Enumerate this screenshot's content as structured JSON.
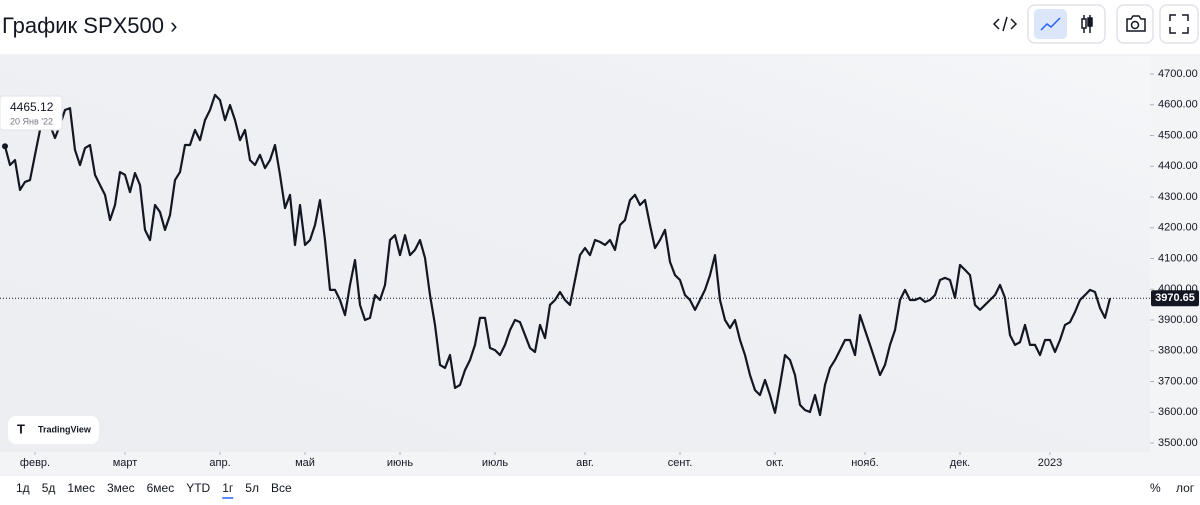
{
  "header": {
    "title": "График SPX500 ›"
  },
  "chart_data": {
    "type": "line",
    "series": [
      {
        "name": "SPX500",
        "color": "#131722",
        "values": [
          4465.12,
          4404,
          4420,
          4323,
          4349,
          4355,
          4437,
          4518,
          4583,
          4534,
          4492,
          4534,
          4583,
          4589,
          4453,
          4404,
          4459,
          4469,
          4372,
          4339,
          4307,
          4225,
          4274,
          4381,
          4372,
          4316,
          4378,
          4339,
          4193,
          4160,
          4274,
          4251,
          4193,
          4241,
          4355,
          4381,
          4469,
          4469,
          4518,
          4485,
          4550,
          4583,
          4632,
          4615,
          4550,
          4599,
          4550,
          4485,
          4518,
          4420,
          4404,
          4437,
          4394,
          4420,
          4469,
          4372,
          4264,
          4307,
          4144,
          4274,
          4144,
          4160,
          4209,
          4290,
          4160,
          3998,
          3998,
          3965,
          3916,
          4014,
          4095,
          3949,
          3900,
          3907,
          3981,
          3965,
          4014,
          4160,
          4176,
          4111,
          4176,
          4111,
          4128,
          4160,
          4102,
          3981,
          3884,
          3754,
          3744,
          3786,
          3679,
          3689,
          3737,
          3770,
          3819,
          3907,
          3907,
          3809,
          3802,
          3786,
          3819,
          3867,
          3900,
          3893,
          3851,
          3809,
          3796,
          3884,
          3841,
          3949,
          3965,
          3991,
          3965,
          3949,
          4030,
          4111,
          4134,
          4111,
          4160,
          4154,
          4144,
          4160,
          4128,
          4209,
          4225,
          4290,
          4307,
          4274,
          4290,
          4209,
          4134,
          4160,
          4193,
          4089,
          4046,
          4030,
          3981,
          3965,
          3933,
          3965,
          3998,
          4046,
          4111,
          3965,
          3900,
          3874,
          3900,
          3835,
          3786,
          3721,
          3672,
          3656,
          3705,
          3656,
          3598,
          3689,
          3786,
          3770,
          3721,
          3624,
          3607,
          3601,
          3656,
          3591,
          3689,
          3744,
          3770,
          3802,
          3835,
          3835,
          3786,
          3916,
          3867,
          3819,
          3770,
          3721,
          3754,
          3819,
          3867,
          3965,
          3998,
          3965,
          3965,
          3972,
          3959,
          3965,
          3981,
          4030,
          4037,
          4030,
          3972,
          4079,
          4063,
          4046,
          3949,
          3933,
          3949,
          3965,
          3981,
          4014,
          3972,
          3851,
          3819,
          3828,
          3884,
          3819,
          3819,
          3786,
          3835,
          3835,
          3796,
          3835,
          3884,
          3893,
          3926,
          3965,
          3981,
          3998,
          3991,
          3939,
          3907,
          3970.65
        ]
      }
    ],
    "xlim": [
      0,
      220
    ],
    "xticks": [
      {
        "value": 6,
        "label": "февр."
      },
      {
        "value": 24,
        "label": "март"
      },
      {
        "value": 43,
        "label": "апр."
      },
      {
        "value": 60,
        "label": "май"
      },
      {
        "value": 79,
        "label": "июнь"
      },
      {
        "value": 98,
        "label": "июль"
      },
      {
        "value": 116,
        "label": "авг."
      },
      {
        "value": 135,
        "label": "сент."
      },
      {
        "value": 154,
        "label": "окт."
      },
      {
        "value": 172,
        "label": "нояб."
      },
      {
        "value": 191,
        "label": "дек."
      },
      {
        "value": 209,
        "label": "2023"
      }
    ],
    "ylim": [
      3500,
      4700
    ],
    "yticks": [
      {
        "value": 3500,
        "label": "3500.00"
      },
      {
        "value": 3600,
        "label": "3600.00"
      },
      {
        "value": 3700,
        "label": "3700.00"
      },
      {
        "value": 3800,
        "label": "3800.00"
      },
      {
        "value": 3900,
        "label": "3900.00"
      },
      {
        "value": 4000,
        "label": "4000.00"
      },
      {
        "value": 4100,
        "label": "4100.00"
      },
      {
        "value": 4200,
        "label": "4200.00"
      },
      {
        "value": 4300,
        "label": "4300.00"
      },
      {
        "value": 4400,
        "label": "4400.00"
      },
      {
        "value": 4500,
        "label": "4500.00"
      },
      {
        "value": 4600,
        "label": "4600.00"
      },
      {
        "value": 4700,
        "label": "4700.00"
      }
    ],
    "tooltip_date": "20 Янв '22",
    "brand": "TradingView"
  },
  "range_buttons": [
    "1д",
    "5д",
    "1мес",
    "3мес",
    "6мес",
    "YTD",
    "1г",
    "5л",
    "Все"
  ],
  "active_range": "1г",
  "scale_buttons": [
    "%",
    "лог"
  ]
}
